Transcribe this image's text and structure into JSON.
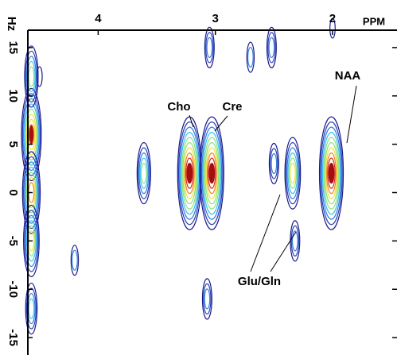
{
  "chart_data": {
    "type": "contour",
    "x_label": "PPM",
    "y_label": "Hz",
    "xlim": [
      4.6,
      1.45
    ],
    "xticks": [
      4,
      3,
      2
    ],
    "ylim": [
      -16.8,
      16.8
    ],
    "yticks": [
      15,
      10,
      5,
      0,
      -5,
      -10,
      -15
    ],
    "colors": [
      "#1a1a8c",
      "#2a3fb8",
      "#2f7fe0",
      "#36c3f0",
      "#8be07a",
      "#f2e03a",
      "#f08a20",
      "#d62a18",
      "#a50f0f"
    ],
    "peaks": {
      "x": [
        4.57,
        4.57,
        4.57,
        4.57,
        4.57,
        3.22,
        3.03,
        2.01,
        3.61,
        2.5,
        2.34,
        3.05,
        2.52,
        2.7,
        4.5,
        2.0,
        3.07,
        2.32,
        4.2
      ],
      "y": [
        6,
        0,
        -5,
        12,
        -12,
        2,
        2,
        2,
        2,
        3,
        2,
        15,
        15,
        14,
        12,
        17,
        -11,
        -5,
        -7
      ],
      "levels": [
        8,
        7,
        6,
        5,
        4,
        10,
        10,
        10,
        5,
        3,
        6,
        3,
        3,
        2,
        1,
        1,
        3,
        3,
        2
      ]
    },
    "annotations": [
      "Cho",
      "Cre",
      "NAA",
      "Glu/Gln"
    ]
  }
}
